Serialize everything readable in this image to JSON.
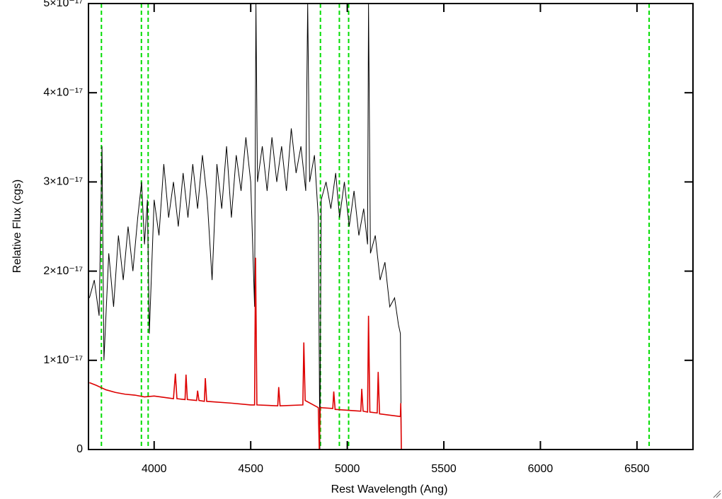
{
  "chart_data": {
    "type": "line",
    "xlabel": "Rest Wavelength (Ang)",
    "ylabel": "Relative Flux (cgs)",
    "xlim": [
      3660,
      6790
    ],
    "ylim": [
      0,
      5e-17
    ],
    "xticks": [
      4000,
      4500,
      5000,
      5500,
      6000,
      6500
    ],
    "yticks": [
      0,
      {
        "value": 1e-17,
        "label": "1×10⁻¹⁷"
      },
      {
        "value": 2e-17,
        "label": "2×10⁻¹⁷"
      },
      {
        "value": 3e-17,
        "label": "3×10⁻¹⁷"
      },
      {
        "value": 4e-17,
        "label": "4×10⁻¹⁷"
      },
      {
        "value": 5e-17,
        "label": "5×10⁻¹⁷"
      }
    ],
    "vlines": [
      3727,
      3934,
      3969,
      4861,
      4959,
      5007,
      6563
    ],
    "vline_color": "#00dd00",
    "series": [
      {
        "color": "#000000",
        "x": [
          3665,
          3690,
          3715,
          3730,
          3740,
          3765,
          3790,
          3815,
          3840,
          3865,
          3890,
          3915,
          3935,
          3950,
          3965,
          3975,
          4000,
          4025,
          4050,
          4075,
          4100,
          4125,
          4150,
          4175,
          4200,
          4225,
          4250,
          4275,
          4300,
          4325,
          4350,
          4375,
          4400,
          4425,
          4450,
          4475,
          4500,
          4520,
          4527,
          4535,
          4560,
          4585,
          4610,
          4635,
          4660,
          4685,
          4710,
          4735,
          4760,
          4785,
          4795,
          4805,
          4830,
          4850,
          4858,
          4865,
          4890,
          4915,
          4940,
          4960,
          4985,
          5010,
          5035,
          5060,
          5085,
          5105,
          5110,
          5120,
          5145,
          5170,
          5195,
          5220,
          5245,
          5265,
          5275,
          5280,
          6790
        ],
        "values": [
          1.7e-17,
          1.9e-17,
          1.5e-17,
          3.4e-17,
          1e-17,
          2.2e-17,
          1.6e-17,
          2.4e-17,
          1.9e-17,
          2.5e-17,
          2e-17,
          2.6e-17,
          3e-17,
          2.3e-17,
          2.8e-17,
          1.3e-17,
          2.8e-17,
          2.4e-17,
          3.2e-17,
          2.6e-17,
          3e-17,
          2.5e-17,
          3.1e-17,
          2.6e-17,
          3.2e-17,
          2.7e-17,
          3.3e-17,
          2.8e-17,
          1.9e-17,
          3.2e-17,
          2.7e-17,
          3.4e-17,
          2.6e-17,
          3.3e-17,
          2.9e-17,
          3.5e-17,
          3e-17,
          1.6e-17,
          5e-17,
          3e-17,
          3.4e-17,
          2.9e-17,
          3.5e-17,
          3e-17,
          3.4e-17,
          2.9e-17,
          3.6e-17,
          3.1e-17,
          3.4e-17,
          2.9e-17,
          5e-17,
          3e-17,
          3.3e-17,
          2.6e-17,
          0,
          2.8e-17,
          3e-17,
          2.7e-17,
          3.1e-17,
          2.6e-17,
          3e-17,
          2.5e-17,
          2.9e-17,
          2.4e-17,
          2.7e-17,
          2.3e-17,
          5e-17,
          2.2e-17,
          2.4e-17,
          1.9e-17,
          2.1e-17,
          1.6e-17,
          1.7e-17,
          1.4e-17,
          1.3e-17,
          0,
          0
        ]
      },
      {
        "color": "#dd0000",
        "x": [
          3665,
          3700,
          3750,
          3800,
          3850,
          3900,
          3950,
          4000,
          4100,
          4110,
          4118,
          4160,
          4165,
          4172,
          4220,
          4225,
          4232,
          4260,
          4265,
          4272,
          4400,
          4500,
          4520,
          4525,
          4532,
          4640,
          4645,
          4652,
          4770,
          4775,
          4782,
          4850,
          4855,
          4860,
          4925,
          4930,
          4937,
          5070,
          5075,
          5082,
          5105,
          5110,
          5117,
          5155,
          5160,
          5167,
          5275,
          5277,
          5280,
          6790
        ],
        "values": [
          7.5e-18,
          7.2e-18,
          6.7e-18,
          6.4e-18,
          6.2e-18,
          6.1e-18,
          5.9e-18,
          6e-18,
          5.7e-18,
          8.5e-18,
          5.7e-18,
          5.6e-18,
          8.4e-18,
          5.6e-18,
          5.5e-18,
          6.6e-18,
          5.5e-18,
          5.4e-18,
          8e-18,
          5.4e-18,
          5.2e-18,
          5e-18,
          5e-18,
          2.15e-17,
          5e-18,
          4.9e-18,
          7e-18,
          4.9e-18,
          5e-18,
          1.2e-17,
          5.5e-18,
          4.7e-18,
          0,
          4.7e-18,
          4.6e-18,
          6.5e-18,
          4.5e-18,
          4.3e-18,
          6.8e-18,
          4.3e-18,
          4.2e-18,
          1.5e-17,
          4.2e-18,
          4.1e-18,
          8.7e-18,
          4e-18,
          3.7e-18,
          5.2e-18,
          0,
          0
        ]
      }
    ]
  }
}
